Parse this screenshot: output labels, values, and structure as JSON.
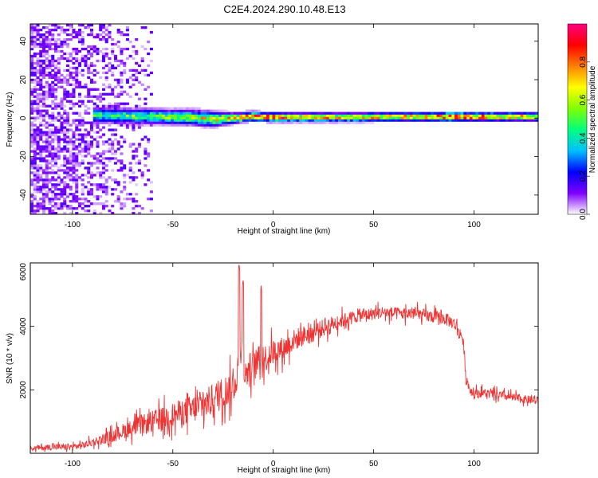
{
  "figure_title": "C2E4.2024.290.10.48.E13",
  "chart_data": [
    {
      "type": "heatmap",
      "title": "C2E4.2024.290.10.48.E13",
      "xlabel": "Height of straight line (km)",
      "ylabel": "Frequency (Hz)",
      "xlim": [
        -121,
        132
      ],
      "ylim": [
        -50,
        49
      ],
      "xticks": [
        -100,
        -50,
        0,
        50,
        100
      ],
      "yticks": [
        -40,
        -20,
        0,
        20,
        40
      ],
      "grid": false,
      "colormap": [
        "#ffffff",
        "#7f00ff",
        "#0000ff",
        "#00c0ff",
        "#00ff80",
        "#80ff00",
        "#ffff00",
        "#ff8000",
        "#ff0000",
        "#ff0080"
      ],
      "colorbar": {
        "label": "Normalized spectral amplitude",
        "range": [
          0,
          1
        ],
        "ticks": [
          0.0,
          0.2,
          0.4,
          0.6,
          0.8
        ]
      },
      "band": {
        "description_points": [
          {
            "x": -121,
            "noise_level": 0.35
          },
          {
            "x": -90,
            "noise_level": 0.2
          },
          {
            "x": -60,
            "noise_level": 0.05
          }
        ],
        "x": [
          -90,
          -80,
          -70,
          -60,
          -50,
          -40,
          -30,
          -20,
          -10,
          0,
          10,
          20,
          40,
          60,
          80,
          90,
          100,
          120,
          132
        ],
        "center_hz": [
          1.5,
          1.5,
          1.0,
          1.0,
          0.5,
          0.5,
          -0.5,
          0.0,
          1.0,
          0.5,
          0.5,
          0.5,
          0.5,
          0.8,
          0.8,
          0.8,
          0.8,
          0.8,
          0.8
        ],
        "halfwidth_hz": [
          5,
          5,
          5,
          5,
          5,
          5,
          5,
          3.5,
          3,
          3,
          3,
          3,
          3,
          3,
          3,
          3,
          3,
          3,
          3
        ],
        "peak_amplitude": [
          0.45,
          0.45,
          0.5,
          0.5,
          0.55,
          0.6,
          0.65,
          0.7,
          0.9,
          0.95,
          0.75,
          0.75,
          0.7,
          0.7,
          0.75,
          0.95,
          0.8,
          0.7,
          0.7
        ]
      }
    },
    {
      "type": "line",
      "title": "",
      "xlabel": "Height of straight line (km)",
      "ylabel": "SNR (10 * v/v)",
      "xlim": [
        -121,
        132
      ],
      "ylim": [
        0,
        6000
      ],
      "xticks": [
        -100,
        -50,
        0,
        50,
        100
      ],
      "yticks": [
        2000,
        4000,
        6000
      ],
      "grid": false,
      "series": [
        {
          "color": "#ee3333",
          "x": [
            -121,
            -110,
            -100,
            -95,
            -90,
            -85,
            -80,
            -75,
            -70,
            -65,
            -60,
            -55,
            -50,
            -45,
            -40,
            -35,
            -30,
            -25,
            -20,
            -18,
            -16,
            -14,
            -12,
            -10,
            -8,
            -5,
            -2,
            0,
            5,
            10,
            15,
            20,
            25,
            30,
            35,
            40,
            45,
            50,
            55,
            60,
            65,
            70,
            75,
            80,
            85,
            90,
            92,
            94,
            95,
            96,
            98,
            100,
            105,
            110,
            115,
            120,
            125,
            132
          ],
          "values": [
            150,
            200,
            200,
            250,
            350,
            450,
            550,
            700,
            800,
            900,
            1000,
            1100,
            1200,
            1300,
            1400,
            1500,
            1700,
            1900,
            2100,
            2500,
            3500,
            2400,
            2700,
            2700,
            2900,
            2950,
            3100,
            3200,
            3300,
            3550,
            3700,
            3800,
            3950,
            4100,
            4200,
            4300,
            4350,
            4400,
            4450,
            4400,
            4400,
            4400,
            4350,
            4300,
            4250,
            4100,
            3900,
            3700,
            3300,
            2400,
            2000,
            1900,
            1900,
            1850,
            1800,
            1750,
            1700,
            1650
          ],
          "spikes": [
            {
              "x": -17,
              "value": 6000
            },
            {
              "x": -15,
              "value": 5500
            },
            {
              "x": -6,
              "value": 5300
            }
          ],
          "noise_amplitude": [
            {
              "x": -121,
              "amp": 150
            },
            {
              "x": -90,
              "amp": 250
            },
            {
              "x": -60,
              "amp": 700
            },
            {
              "x": -20,
              "amp": 1100
            },
            {
              "x": 10,
              "amp": 700
            },
            {
              "x": 40,
              "amp": 400
            },
            {
              "x": 90,
              "amp": 400
            },
            {
              "x": 100,
              "amp": 300
            },
            {
              "x": 132,
              "amp": 250
            }
          ]
        }
      ]
    }
  ]
}
